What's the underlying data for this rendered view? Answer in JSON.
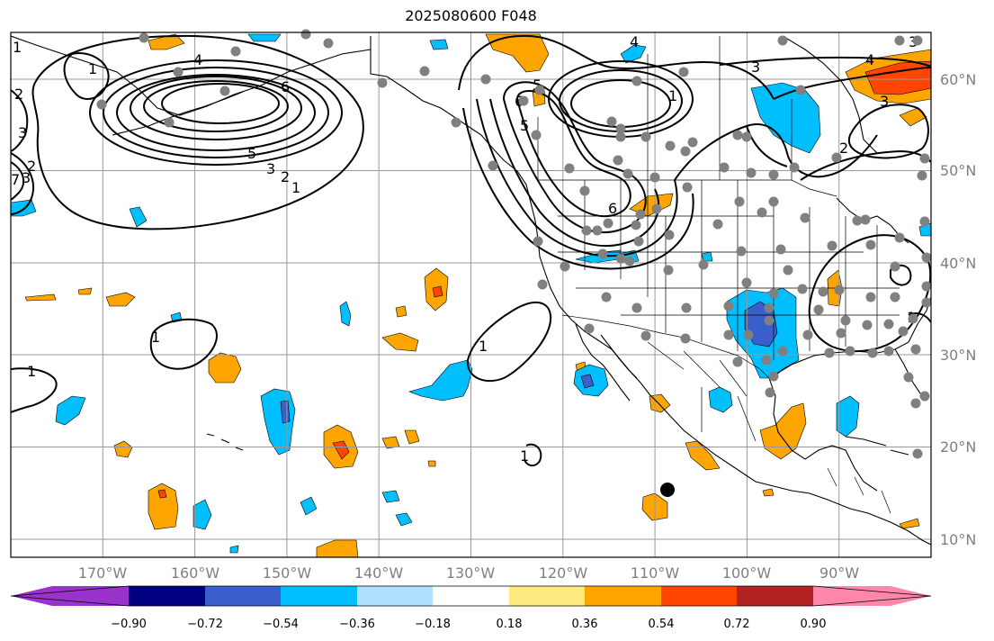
{
  "title": "2025080600 F048",
  "axes": {
    "lon_labels": [
      "170°W",
      "160°W",
      "150°W",
      "140°W",
      "130°W",
      "120°W",
      "110°W",
      "100°W",
      "90°W"
    ],
    "lon_values": [
      -170,
      -160,
      -150,
      -140,
      -130,
      -120,
      -110,
      -100,
      -90
    ],
    "lat_labels": [
      "60°N",
      "50°N",
      "40°N",
      "30°N",
      "20°N",
      "10°N"
    ],
    "lat_values": [
      60,
      50,
      40,
      30,
      20,
      10
    ],
    "lon_range": [
      -180,
      -80
    ],
    "lat_range": [
      8,
      64
    ],
    "grid": true
  },
  "colorbar": {
    "tick_labels": [
      "−0.90",
      "−0.72",
      "−0.54",
      "−0.36",
      "−0.18",
      "0.18",
      "0.36",
      "0.54",
      "0.72",
      "0.90"
    ],
    "colors": [
      "#9933cc",
      "#000080",
      "#3a5fcd",
      "#00bfff",
      "#b0e2ff",
      "#ffffff",
      "#ffea80",
      "#ffa500",
      "#ff4500",
      "#b22222",
      "#ff88aa"
    ],
    "extend": "both"
  },
  "contour_labels": [
    "1",
    "4",
    "6",
    "5",
    "3",
    "2",
    "1",
    "3",
    "7",
    "6",
    "5",
    "3",
    "2",
    "1",
    "1",
    "6",
    "1",
    "4",
    "3",
    "2",
    "1",
    "1",
    "1",
    "3",
    "5",
    "4",
    "3",
    "2",
    "1"
  ],
  "colors": {
    "frame": "#000000",
    "grid": "#999999",
    "station": "#808080",
    "marker": "#000000"
  },
  "station_marker": "gray-dot",
  "highlight_marker": "black-dot"
}
